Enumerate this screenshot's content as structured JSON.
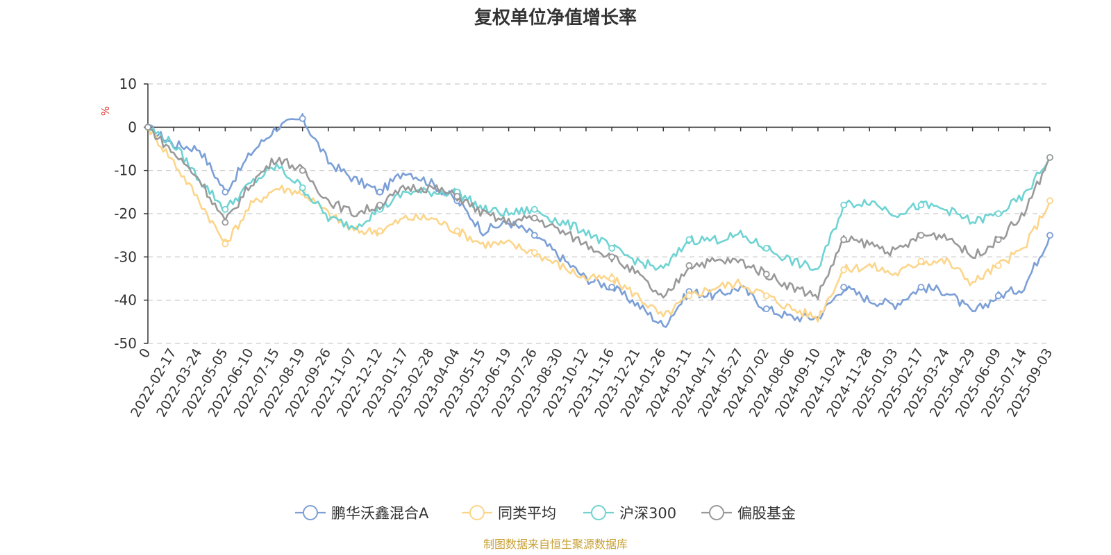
{
  "chart_data": {
    "type": "line",
    "title": "复权单位净值增长率",
    "ylabel": "%",
    "ylim": [
      -50,
      10
    ],
    "yticks": [
      10,
      0,
      -10,
      -20,
      -30,
      -40,
      -50
    ],
    "grid": true,
    "legend_position": "bottom",
    "x_tick_labels": [
      "0",
      "2022-02-17",
      "2022-03-24",
      "2022-05-05",
      "2022-06-10",
      "2022-07-15",
      "2022-08-19",
      "2022-09-26",
      "2022-11-07",
      "2022-12-12",
      "2023-01-17",
      "2023-02-28",
      "2023-04-04",
      "2023-05-15",
      "2023-06-19",
      "2023-07-26",
      "2023-08-30",
      "2023-10-12",
      "2023-11-16",
      "2023-12-21",
      "2024-01-26",
      "2024-03-11",
      "2024-04-17",
      "2024-05-27",
      "2024-07-02",
      "2024-08-06",
      "2024-09-10",
      "2024-10-24",
      "2024-11-28",
      "2025-01-03",
      "2025-02-17",
      "2025-03-24",
      "2025-04-29",
      "2025-06-09",
      "2025-07-14",
      "2025-09-03"
    ],
    "x": [
      0,
      1,
      2,
      3,
      4,
      5,
      6,
      7,
      8,
      9,
      10,
      11,
      12,
      13,
      14,
      15,
      16,
      17,
      18,
      19,
      20,
      21,
      22,
      23,
      24,
      25,
      26,
      27,
      28,
      29,
      30,
      31,
      32,
      33,
      34,
      35
    ],
    "series": [
      {
        "name": "鹏华沃鑫混合A",
        "color": "#7b9fd6",
        "values": [
          0,
          -4,
          -5,
          -15,
          -6,
          0,
          2,
          -8,
          -12,
          -15,
          -10,
          -13,
          -17,
          -24,
          -22,
          -25,
          -30,
          -35,
          -37,
          -41,
          -46,
          -38,
          -39,
          -37,
          -42,
          -44,
          -44,
          -37,
          -40,
          -41,
          -37,
          -38,
          -43,
          -39,
          -37,
          -25
        ]
      },
      {
        "name": "同类平均",
        "color": "#fcd58a",
        "values": [
          0,
          -8,
          -17,
          -27,
          -18,
          -14,
          -15,
          -20,
          -24,
          -24,
          -21,
          -21,
          -24,
          -27,
          -27,
          -29,
          -32,
          -35,
          -35,
          -39,
          -44,
          -39,
          -37,
          -36,
          -39,
          -42,
          -44,
          -33,
          -32,
          -34,
          -31,
          -31,
          -36,
          -32,
          -28,
          -17
        ]
      },
      {
        "name": "沪深300",
        "color": "#6fd3d3",
        "values": [
          0,
          -4,
          -12,
          -19,
          -13,
          -9,
          -14,
          -21,
          -23,
          -19,
          -15,
          -15,
          -15,
          -19,
          -20,
          -19,
          -22,
          -24,
          -28,
          -31,
          -33,
          -26,
          -26,
          -25,
          -28,
          -31,
          -33,
          -18,
          -17,
          -20,
          -18,
          -19,
          -22,
          -20,
          -16,
          -7
        ]
      },
      {
        "name": "偏股基金",
        "color": "#999999",
        "values": [
          0,
          -6,
          -12,
          -22,
          -13,
          -7,
          -10,
          -17,
          -20,
          -18,
          -14,
          -14,
          -16,
          -20,
          -22,
          -21,
          -24,
          -27,
          -30,
          -34,
          -40,
          -32,
          -31,
          -31,
          -34,
          -37,
          -39,
          -26,
          -27,
          -29,
          -25,
          -25,
          -30,
          -26,
          -20,
          -7
        ]
      }
    ]
  },
  "source_note": "制图数据来自恒生聚源数据库"
}
